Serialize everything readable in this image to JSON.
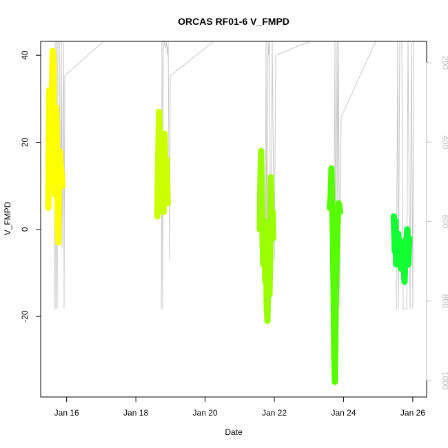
{
  "chart_data": {
    "type": "line",
    "title": "ORCAS RF01-6 V_FMPD",
    "xlabel": "Date",
    "ylabel": "V_FMPD",
    "x_unit": "days (January)",
    "xlim": [
      15.25,
      26.4
    ],
    "ylim": [
      -38.5,
      43.2
    ],
    "x_ticks": [
      16,
      18,
      20,
      22,
      24,
      26
    ],
    "x_tick_labels": [
      "Jan 16",
      "Jan 18",
      "Jan 20",
      "Jan 22",
      "Jan 24",
      "Jan 26"
    ],
    "y_ticks": [
      -20,
      0,
      20,
      40
    ],
    "y_tick_labels": [
      "-20",
      "0",
      "20",
      "40"
    ],
    "y2_ticks": [
      200,
      400,
      600,
      800,
      1000
    ],
    "y2_tick_labels": [
      "200",
      "400",
      "600",
      "800",
      "1000"
    ],
    "y2_color": "#bdbdbd",
    "grid": false,
    "legend": "none",
    "series": [
      {
        "color": "#ffff00",
        "x": [
          15.47,
          15.5,
          15.52,
          15.55,
          15.57,
          15.6,
          15.62,
          15.64,
          15.66,
          15.68,
          15.7,
          15.72,
          15.74,
          15.76,
          15.78,
          15.8,
          15.83,
          15.86,
          15.88
        ],
        "y": [
          5,
          32,
          12,
          22,
          30,
          41,
          38,
          18,
          8,
          15,
          28,
          20,
          5,
          -3,
          10,
          18,
          15,
          12,
          10
        ]
      },
      {
        "color": "#ccff00",
        "x": [
          18.62,
          18.64,
          18.67,
          18.7,
          18.72,
          18.75,
          18.78,
          18.8,
          18.83,
          18.86,
          18.89,
          18.92
        ],
        "y": [
          3,
          15,
          27,
          20,
          8,
          18,
          12,
          4,
          22,
          10,
          16,
          6
        ]
      },
      {
        "color": "#99ff00",
        "x": [
          21.58,
          21.6,
          21.62,
          21.64,
          21.66,
          21.68,
          21.7,
          21.72,
          21.74,
          21.76,
          21.78,
          21.8,
          21.82,
          21.84,
          21.86,
          21.88,
          21.9,
          21.92,
          21.95,
          21.97
        ],
        "y": [
          0,
          12,
          18,
          8,
          -2,
          -8,
          2,
          -5,
          -12,
          -3,
          -18,
          -21,
          -10,
          -4,
          -15,
          -6,
          12,
          2,
          4,
          -2
        ]
      },
      {
        "color": "#55ff00",
        "x": [
          23.6,
          23.63,
          23.65,
          23.67,
          23.69,
          23.71,
          23.73,
          23.75,
          23.77,
          23.79,
          23.81,
          23.83,
          23.86,
          23.9
        ],
        "y": [
          5,
          8,
          14,
          6,
          0,
          -12,
          -28,
          -35,
          -20,
          -10,
          -2,
          2,
          6,
          4
        ]
      },
      {
        "color": "#11ff33",
        "x": [
          25.45,
          25.48,
          25.5,
          25.52,
          25.55,
          25.58,
          25.62,
          25.66,
          25.7,
          25.73,
          25.76,
          25.8,
          25.84,
          25.87,
          25.9
        ],
        "y": [
          3,
          -5,
          2,
          -8,
          -4,
          -1,
          -6,
          -9,
          -3,
          -7,
          -12,
          -4,
          0,
          -8,
          -2
        ]
      }
    ]
  }
}
